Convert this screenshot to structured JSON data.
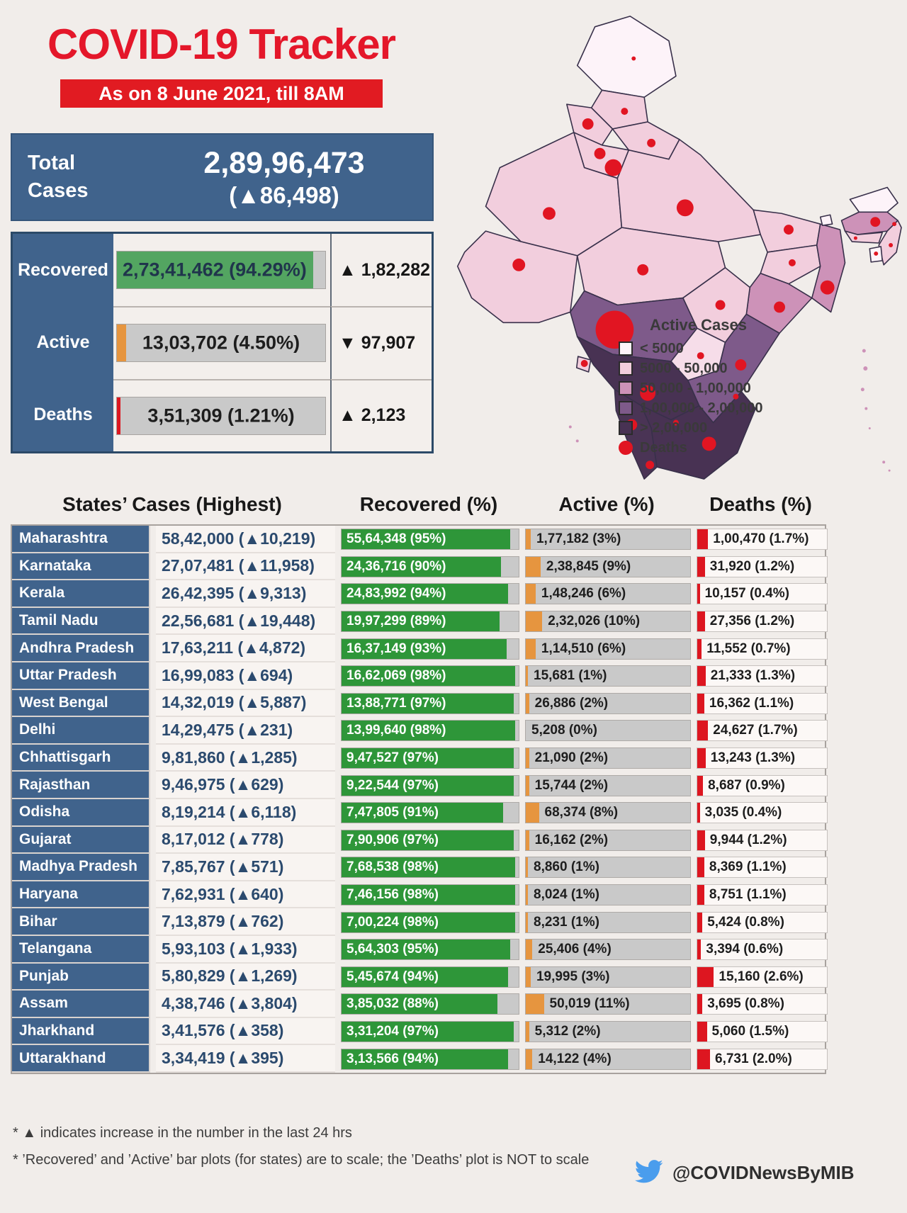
{
  "title": "COVID-19 Tracker",
  "date_banner": "As on 8 June 2021, till 8AM",
  "colors": {
    "accent_red": "#e4172a",
    "panel_blue": "#40638c",
    "recovered_green": "#2e9639",
    "active_orange": "#e6953f",
    "deaths_red": "#dd1620",
    "bar_track_gray": "#c9c9c9",
    "background": "#f1edea"
  },
  "totals": {
    "label_line1": "Total",
    "label_line2": "Cases",
    "value": "2,89,96,473",
    "change": "(▲86,498)"
  },
  "summary": {
    "rows": [
      {
        "label": "Recovered",
        "value": "2,73,41,462 (94.29%)",
        "change": "▲ 1,82,282",
        "bar_pct": 94.29,
        "bar_color": "green"
      },
      {
        "label": "Active",
        "value": "13,03,702 (4.50%)",
        "change": "▼ 97,907",
        "bar_pct": 4.5,
        "bar_color": "orange"
      },
      {
        "label": "Deaths",
        "value": "3,51,309 (1.21%)",
        "change": "▲ 2,123",
        "bar_pct": 1.21,
        "bar_color": "red"
      }
    ]
  },
  "map": {
    "legend_title": "Active Cases",
    "legend": [
      {
        "label": "< 5000",
        "color": "#fdf3f9"
      },
      {
        "label": "5000 - 50,000",
        "color": "#f2cedd"
      },
      {
        "label": "50,000 - 1,00,000",
        "color": "#cd92b8"
      },
      {
        "label": "1,00,000 - 2,00,000",
        "color": "#7e5a8a"
      },
      {
        "label": "> 2,00,000",
        "color": "#483253"
      },
      {
        "label": "Deaths",
        "color": "#e11522",
        "shape": "circle"
      }
    ]
  },
  "table": {
    "headers": [
      "States’ Cases (Highest)",
      "Recovered (%)",
      "Active (%)",
      "Deaths (%)"
    ],
    "rows": [
      {
        "state": "Maharashtra",
        "cases": "58,42,000 (▲10,219)",
        "recovered": "55,64,348 (95%)",
        "recovered_pct": 95,
        "active": "1,77,182 (3%)",
        "active_pct": 3,
        "deaths": "1,00,470 (1.7%)",
        "deaths_pct": 1.7
      },
      {
        "state": "Karnataka",
        "cases": "27,07,481 (▲11,958)",
        "recovered": "24,36,716 (90%)",
        "recovered_pct": 90,
        "active": "2,38,845 (9%)",
        "active_pct": 9,
        "deaths": "31,920 (1.2%)",
        "deaths_pct": 1.2
      },
      {
        "state": "Kerala",
        "cases": "26,42,395 (▲9,313)",
        "recovered": "24,83,992 (94%)",
        "recovered_pct": 94,
        "active": "1,48,246 (6%)",
        "active_pct": 6,
        "deaths": "10,157 (0.4%)",
        "deaths_pct": 0.4
      },
      {
        "state": "Tamil Nadu",
        "cases": "22,56,681 (▲19,448)",
        "recovered": "19,97,299 (89%)",
        "recovered_pct": 89,
        "active": "2,32,026 (10%)",
        "active_pct": 10,
        "deaths": "27,356 (1.2%)",
        "deaths_pct": 1.2
      },
      {
        "state": "Andhra Pradesh",
        "cases": "17,63,211 (▲4,872)",
        "recovered": "16,37,149 (93%)",
        "recovered_pct": 93,
        "active": "1,14,510 (6%)",
        "active_pct": 6,
        "deaths": "11,552 (0.7%)",
        "deaths_pct": 0.7
      },
      {
        "state": "Uttar Pradesh",
        "cases": "16,99,083 (▲694)",
        "recovered": "16,62,069 (98%)",
        "recovered_pct": 98,
        "active": "15,681 (1%)",
        "active_pct": 1,
        "deaths": "21,333 (1.3%)",
        "deaths_pct": 1.3
      },
      {
        "state": "West Bengal",
        "cases": "14,32,019 (▲5,887)",
        "recovered": "13,88,771 (97%)",
        "recovered_pct": 97,
        "active": "26,886 (2%)",
        "active_pct": 2,
        "deaths": "16,362 (1.1%)",
        "deaths_pct": 1.1
      },
      {
        "state": "Delhi",
        "cases": "14,29,475 (▲231)",
        "recovered": "13,99,640 (98%)",
        "recovered_pct": 98,
        "active": "5,208 (0%)",
        "active_pct": 0,
        "deaths": "24,627 (1.7%)",
        "deaths_pct": 1.7
      },
      {
        "state": "Chhattisgarh",
        "cases": "9,81,860 (▲1,285)",
        "recovered": "9,47,527 (97%)",
        "recovered_pct": 97,
        "active": "21,090 (2%)",
        "active_pct": 2,
        "deaths": "13,243 (1.3%)",
        "deaths_pct": 1.3
      },
      {
        "state": "Rajasthan",
        "cases": "9,46,975 (▲629)",
        "recovered": "9,22,544 (97%)",
        "recovered_pct": 97,
        "active": "15,744 (2%)",
        "active_pct": 2,
        "deaths": "8,687 (0.9%)",
        "deaths_pct": 0.9
      },
      {
        "state": "Odisha",
        "cases": "8,19,214 (▲6,118)",
        "recovered": "7,47,805 (91%)",
        "recovered_pct": 91,
        "active": "68,374 (8%)",
        "active_pct": 8,
        "deaths": "3,035 (0.4%)",
        "deaths_pct": 0.4
      },
      {
        "state": "Gujarat",
        "cases": "8,17,012 (▲778)",
        "recovered": "7,90,906 (97%)",
        "recovered_pct": 97,
        "active": "16,162 (2%)",
        "active_pct": 2,
        "deaths": "9,944 (1.2%)",
        "deaths_pct": 1.2
      },
      {
        "state": "Madhya Pradesh",
        "cases": "7,85,767 (▲571)",
        "recovered": "7,68,538 (98%)",
        "recovered_pct": 98,
        "active": "8,860 (1%)",
        "active_pct": 1,
        "deaths": "8,369 (1.1%)",
        "deaths_pct": 1.1
      },
      {
        "state": "Haryana",
        "cases": "7,62,931 (▲640)",
        "recovered": "7,46,156 (98%)",
        "recovered_pct": 98,
        "active": "8,024 (1%)",
        "active_pct": 1,
        "deaths": "8,751 (1.1%)",
        "deaths_pct": 1.1
      },
      {
        "state": "Bihar",
        "cases": "7,13,879 (▲762)",
        "recovered": "7,00,224 (98%)",
        "recovered_pct": 98,
        "active": "8,231 (1%)",
        "active_pct": 1,
        "deaths": "5,424 (0.8%)",
        "deaths_pct": 0.8
      },
      {
        "state": "Telangana",
        "cases": "5,93,103 (▲1,933)",
        "recovered": "5,64,303 (95%)",
        "recovered_pct": 95,
        "active": "25,406 (4%)",
        "active_pct": 4,
        "deaths": "3,394 (0.6%)",
        "deaths_pct": 0.6
      },
      {
        "state": "Punjab",
        "cases": "5,80,829 (▲1,269)",
        "recovered": "5,45,674 (94%)",
        "recovered_pct": 94,
        "active": "19,995 (3%)",
        "active_pct": 3,
        "deaths": "15,160 (2.6%)",
        "deaths_pct": 2.6
      },
      {
        "state": "Assam",
        "cases": "4,38,746 (▲3,804)",
        "recovered": "3,85,032 (88%)",
        "recovered_pct": 88,
        "active": "50,019 (11%)",
        "active_pct": 11,
        "deaths": "3,695 (0.8%)",
        "deaths_pct": 0.8
      },
      {
        "state": "Jharkhand",
        "cases": "3,41,576 (▲358)",
        "recovered": "3,31,204 (97%)",
        "recovered_pct": 97,
        "active": "5,312 (2%)",
        "active_pct": 2,
        "deaths": "5,060 (1.5%)",
        "deaths_pct": 1.5
      },
      {
        "state": "Uttarakhand",
        "cases": "3,34,419 (▲395)",
        "recovered": "3,13,566 (94%)",
        "recovered_pct": 94,
        "active": "14,122 (4%)",
        "active_pct": 4,
        "deaths": "6,731 (2.0%)",
        "deaths_pct": 2.0
      }
    ]
  },
  "footnotes": [
    "* ▲ indicates increase in the number in the last 24 hrs",
    "* ’Recovered’ and ’Active’ bar plots (for states) are to scale; the ’Deaths’ plot is NOT to scale"
  ],
  "twitter_handle": "@COVIDNewsByMIB",
  "chart_data": {
    "type": "table",
    "title": "COVID-19 Tracker — As on 8 June 2021, till 8AM",
    "totals": {
      "total_cases": 28996473,
      "new_cases_24h": 86498,
      "recovered": 27341462,
      "recovered_pct": 94.29,
      "active": 1303702,
      "active_pct": 4.5,
      "active_change_24h": -97907,
      "deaths": 351309,
      "deaths_pct": 1.21,
      "deaths_change_24h": 2123
    },
    "columns": [
      "state",
      "total_cases",
      "new_cases_24h",
      "recovered",
      "recovered_pct",
      "active",
      "active_pct",
      "deaths",
      "deaths_pct"
    ],
    "rows": [
      [
        "Maharashtra",
        5842000,
        10219,
        5564348,
        95,
        177182,
        3,
        100470,
        1.7
      ],
      [
        "Karnataka",
        2707481,
        11958,
        2436716,
        90,
        238845,
        9,
        31920,
        1.2
      ],
      [
        "Kerala",
        2642395,
        9313,
        2483992,
        94,
        148246,
        6,
        10157,
        0.4
      ],
      [
        "Tamil Nadu",
        2256681,
        19448,
        1997299,
        89,
        232026,
        10,
        27356,
        1.2
      ],
      [
        "Andhra Pradesh",
        1763211,
        4872,
        1637149,
        93,
        114510,
        6,
        11552,
        0.7
      ],
      [
        "Uttar Pradesh",
        1699083,
        694,
        1662069,
        98,
        15681,
        1,
        21333,
        1.3
      ],
      [
        "West Bengal",
        1432019,
        5887,
        1388771,
        97,
        26886,
        2,
        16362,
        1.1
      ],
      [
        "Delhi",
        1429475,
        231,
        1399640,
        98,
        5208,
        0,
        24627,
        1.7
      ],
      [
        "Chhattisgarh",
        981860,
        1285,
        947527,
        97,
        21090,
        2,
        13243,
        1.3
      ],
      [
        "Rajasthan",
        946975,
        629,
        922544,
        97,
        15744,
        2,
        8687,
        0.9
      ],
      [
        "Odisha",
        819214,
        6118,
        747805,
        91,
        68374,
        8,
        3035,
        0.4
      ],
      [
        "Gujarat",
        817012,
        778,
        790906,
        97,
        16162,
        2,
        9944,
        1.2
      ],
      [
        "Madhya Pradesh",
        785767,
        571,
        768538,
        98,
        8860,
        1,
        8369,
        1.1
      ],
      [
        "Haryana",
        762931,
        640,
        746156,
        98,
        8024,
        1,
        8751,
        1.1
      ],
      [
        "Bihar",
        713879,
        762,
        700224,
        98,
        8231,
        1,
        5424,
        0.8
      ],
      [
        "Telangana",
        593103,
        1933,
        564303,
        95,
        25406,
        4,
        3394,
        0.6
      ],
      [
        "Punjab",
        580829,
        1269,
        545674,
        94,
        19995,
        3,
        15160,
        2.6
      ],
      [
        "Assam",
        438746,
        3804,
        385032,
        88,
        50019,
        11,
        3695,
        0.8
      ],
      [
        "Jharkhand",
        341576,
        358,
        331204,
        97,
        5312,
        2,
        5060,
        1.5
      ],
      [
        "Uttarakhand",
        334419,
        395,
        313566,
        94,
        14122,
        4,
        6731,
        2.0
      ]
    ],
    "legend": {
      "title": "Active Cases",
      "bins": [
        "< 5000",
        "5000 - 50,000",
        "50,000 - 1,00,000",
        "1,00,000 - 2,00,000",
        "> 2,00,000"
      ],
      "marker": "Deaths"
    }
  }
}
